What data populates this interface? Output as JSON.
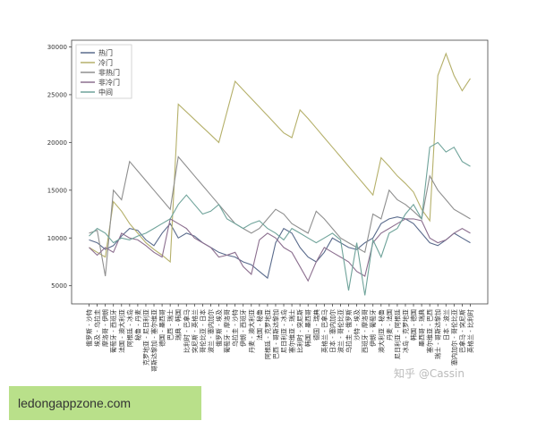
{
  "chart_data": {
    "type": "line",
    "categories": [
      "俄罗斯 - 沙特",
      "埃及 - 乌拉圭",
      "摩洛哥 - 伊朗",
      "葡萄牙 - 西班牙",
      "法国 - 澳大利亚",
      "阿根廷 - 冰岛",
      "秘鲁 - 丹麦",
      "克罗地亚 - 尼日利亚",
      "哥斯达黎加 - 塞尔维亚",
      "德国 - 墨西哥",
      "巴西 - 瑞士",
      "瑞典 - 韩国",
      "比利时 - 巴拿马",
      "突尼斯 - 英格兰",
      "哥伦比亚 - 日本",
      "波兰 - 塞内加尔",
      "俄罗斯 - 埃及",
      "葡萄牙 - 摩洛哥",
      "乌拉圭 - 沙特",
      "伊朗 - 西班牙",
      "丹麦 - 澳大利亚",
      "法国 - 秘鲁",
      "阿根廷 - 克罗地亚",
      "巴西 - 哥斯达黎加",
      "尼日利亚 - 冰岛",
      "塞尔维亚 - 瑞士",
      "比利时 - 突尼斯",
      "韩国 - 墨西哥",
      "德国 - 瑞典",
      "英格兰 - 巴拿马",
      "日本 - 塞内加尔",
      "波兰 - 哥伦比亚",
      "乌拉圭 - 俄罗斯",
      "沙特 - 埃及",
      "西班牙 - 摩洛哥",
      "伊朗 - 葡萄牙",
      "澳大利亚 - 秘鲁",
      "丹麦 - 法国",
      "尼日利亚 - 阿根廷",
      "冰岛 - 克罗地亚",
      "韩国 - 德国",
      "墨西哥 - 瑞典",
      "塞尔维亚 - 巴西",
      "瑞士 - 哥斯达黎加",
      "日本 - 波兰",
      "塞内加尔 - 哥伦比亚",
      "巴拿马 - 突尼斯",
      "英格兰 - 比利时"
    ],
    "series": [
      {
        "name": "热门",
        "color": "#5a6b8c",
        "values": [
          9800,
          9500,
          8800,
          9200,
          10200,
          11000,
          10800,
          9800,
          9200,
          10500,
          11500,
          10000,
          10500,
          10200,
          9500,
          9000,
          8500,
          8200,
          8000,
          7500,
          7200,
          6500,
          5800,
          9500,
          11000,
          10500,
          9000,
          8000,
          7500,
          8500,
          10000,
          9500,
          9000,
          8800,
          9500,
          10000,
          11500,
          12000,
          12200,
          12000,
          11500,
          10500,
          9500,
          9200,
          9800,
          10500,
          10000,
          9500
        ]
      },
      {
        "name": "冷门",
        "color": "#b5b06a",
        "values": [
          9000,
          8500,
          8000,
          13800,
          12800,
          11500,
          10500,
          9500,
          8800,
          8200,
          7500,
          24000,
          23200,
          22400,
          21600,
          20800,
          20000,
          23200,
          26400,
          25500,
          24600,
          23700,
          22800,
          21900,
          21000,
          20500,
          23400,
          22500,
          21500,
          20500,
          19500,
          18500,
          17500,
          16500,
          15500,
          14500,
          18400,
          17500,
          16500,
          15700,
          14800,
          13000,
          11800,
          27000,
          29300,
          27000,
          25400,
          26700
        ]
      },
      {
        "name": "非热门",
        "color": "#8f8f8f",
        "values": [
          10500,
          10800,
          6000,
          15000,
          14000,
          18000,
          17000,
          16000,
          15000,
          14000,
          13000,
          18500,
          17500,
          16500,
          15500,
          14500,
          13500,
          12500,
          11500,
          11000,
          10500,
          11000,
          12000,
          13000,
          12500,
          11500,
          11000,
          10500,
          12800,
          12000,
          11000,
          10000,
          9500,
          9000,
          8500,
          12500,
          12000,
          15000,
          14000,
          13500,
          12800,
          12000,
          16500,
          15000,
          14000,
          13000,
          12500,
          12000
        ]
      },
      {
        "name": "非冷门",
        "color": "#8c6f8f",
        "values": [
          9000,
          8200,
          9000,
          8500,
          10500,
          10000,
          9800,
          9200,
          8500,
          8000,
          12000,
          11500,
          11000,
          10000,
          9500,
          9000,
          8000,
          8200,
          8500,
          7000,
          6200,
          9800,
          10500,
          10000,
          9000,
          8500,
          7000,
          5500,
          7500,
          9000,
          8500,
          8000,
          7500,
          6500,
          6000,
          9500,
          10500,
          11000,
          11500,
          12000,
          12000,
          11800,
          10000,
          9500,
          9800,
          10500,
          11000,
          10500
        ]
      },
      {
        "name": "中间",
        "color": "#6fa39a",
        "values": [
          10200,
          11000,
          10500,
          9500,
          10000,
          9800,
          10200,
          10500,
          11000,
          11500,
          12000,
          13500,
          14500,
          13500,
          12500,
          12800,
          13500,
          12000,
          11500,
          11000,
          11500,
          11800,
          11000,
          10500,
          9800,
          11000,
          10500,
          10000,
          9500,
          10000,
          10500,
          9800,
          4500,
          9500,
          4000,
          9800,
          8000,
          10500,
          11000,
          12500,
          13500,
          12000,
          19500,
          20000,
          19000,
          19500,
          18000,
          17500
        ]
      }
    ],
    "ylim": [
      3100,
      30700
    ],
    "yticks": [
      5000,
      10000,
      15000,
      20000,
      25000,
      30000
    ],
    "legend": "upper left",
    "annotations": [
      "知乎 @Cassin",
      "ledongappzone.com"
    ]
  }
}
